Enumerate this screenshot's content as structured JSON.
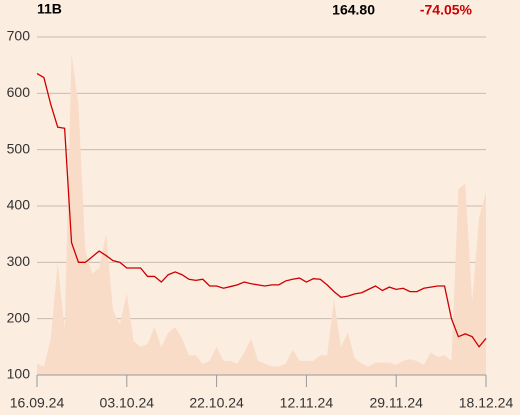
{
  "header": {
    "name": "11B",
    "price": "164.80",
    "change": "-74.05%"
  },
  "chart_data": {
    "type": "line",
    "categories": [
      "16.09.24",
      null,
      null,
      null,
      null,
      null,
      null,
      null,
      null,
      null,
      null,
      null,
      null,
      "03.10.24",
      null,
      null,
      null,
      null,
      null,
      null,
      null,
      null,
      null,
      null,
      null,
      null,
      "22.10.24",
      null,
      null,
      null,
      null,
      null,
      null,
      null,
      null,
      null,
      null,
      null,
      null,
      "12.11.24",
      null,
      null,
      null,
      null,
      null,
      null,
      null,
      null,
      null,
      null,
      null,
      null,
      "29.11.24",
      null,
      null,
      null,
      null,
      null,
      null,
      null,
      null,
      null,
      null,
      null,
      null,
      "18.12.24"
    ],
    "series": [
      {
        "color": "#cc0000",
        "values": [
          635,
          628,
          580,
          540,
          538,
          335,
          300,
          300,
          310,
          320,
          312,
          303,
          300,
          290,
          290,
          290,
          275,
          275,
          265,
          278,
          283,
          278,
          270,
          268,
          270,
          258,
          258,
          254,
          257,
          260,
          265,
          262,
          260,
          258,
          260,
          260,
          267,
          270,
          272,
          265,
          271,
          270,
          260,
          248,
          238,
          240,
          244,
          246,
          252,
          258,
          250,
          256,
          252,
          254,
          248,
          248,
          254,
          256,
          258,
          258,
          200,
          168,
          173,
          168,
          150,
          165
        ]
      },
      {
        "type": "area",
        "color": "#f9dcc8",
        "values": [
          120,
          115,
          165,
          300,
          180,
          670,
          580,
          320,
          280,
          290,
          350,
          215,
          190,
          245,
          160,
          150,
          155,
          185,
          150,
          175,
          185,
          165,
          135,
          135,
          120,
          125,
          150,
          125,
          125,
          120,
          140,
          165,
          125,
          120,
          115,
          115,
          120,
          145,
          125,
          125,
          125,
          135,
          135,
          235,
          150,
          175,
          130,
          120,
          115,
          122,
          122,
          122,
          118,
          125,
          128,
          125,
          118,
          140,
          132,
          135,
          125,
          430,
          440,
          230,
          380,
          425
        ]
      }
    ],
    "ylim": [
      100,
      700
    ],
    "yticks": [
      100,
      200,
      300,
      400,
      500,
      600,
      700
    ],
    "grid": true
  }
}
